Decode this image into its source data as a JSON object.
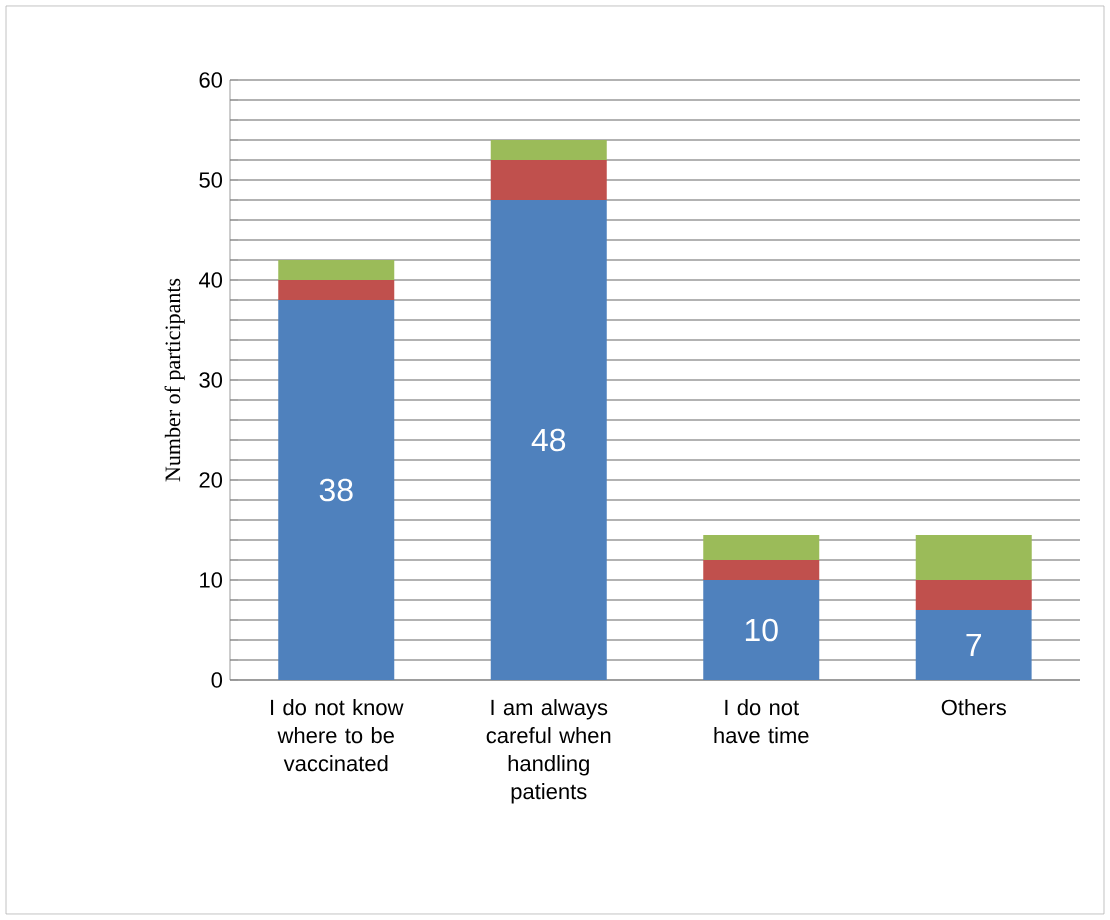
{
  "chart_data": {
    "type": "bar",
    "stacked": true,
    "ylabel": "Number of participants",
    "categories": [
      "I do not know where to be vaccinated",
      "I am always careful when handling patients",
      "I do not have time",
      "Others"
    ],
    "series": [
      {
        "color": "#4f81bd",
        "values": [
          38,
          48,
          10,
          7
        ],
        "value_labels": [
          "38",
          "48",
          "10",
          "7"
        ]
      },
      {
        "color": "#c0504d",
        "values": [
          2,
          4,
          2,
          3
        ]
      },
      {
        "color": "#9bbb59",
        "values": [
          2,
          2,
          2.5,
          4.5
        ]
      }
    ],
    "ylim": [
      0,
      60
    ],
    "yticks": [
      0,
      {
        "value": 2,
        "label": null
      },
      {
        "value": 4,
        "label": null
      },
      {
        "value": 6,
        "label": null
      },
      {
        "value": 8,
        "label": null
      },
      10,
      {
        "value": 12,
        "label": null
      },
      {
        "value": 14,
        "label": null
      },
      {
        "value": 16,
        "label": null
      },
      {
        "value": 18,
        "label": null
      },
      20,
      {
        "value": 22,
        "label": null
      },
      {
        "value": 24,
        "label": null
      },
      {
        "value": 26,
        "label": null
      },
      {
        "value": 28,
        "label": null
      },
      30,
      {
        "value": 32,
        "label": null
      },
      {
        "value": 34,
        "label": null
      },
      {
        "value": 36,
        "label": null
      },
      {
        "value": 38,
        "label": null
      },
      40,
      {
        "value": 42,
        "label": null
      },
      {
        "value": 44,
        "label": null
      },
      {
        "value": 46,
        "label": null
      },
      {
        "value": 48,
        "label": null
      },
      50,
      {
        "value": 52,
        "label": null
      },
      {
        "value": 54,
        "label": null
      },
      {
        "value": 56,
        "label": null
      },
      {
        "value": 58,
        "label": null
      },
      60
    ],
    "grid": "y"
  }
}
